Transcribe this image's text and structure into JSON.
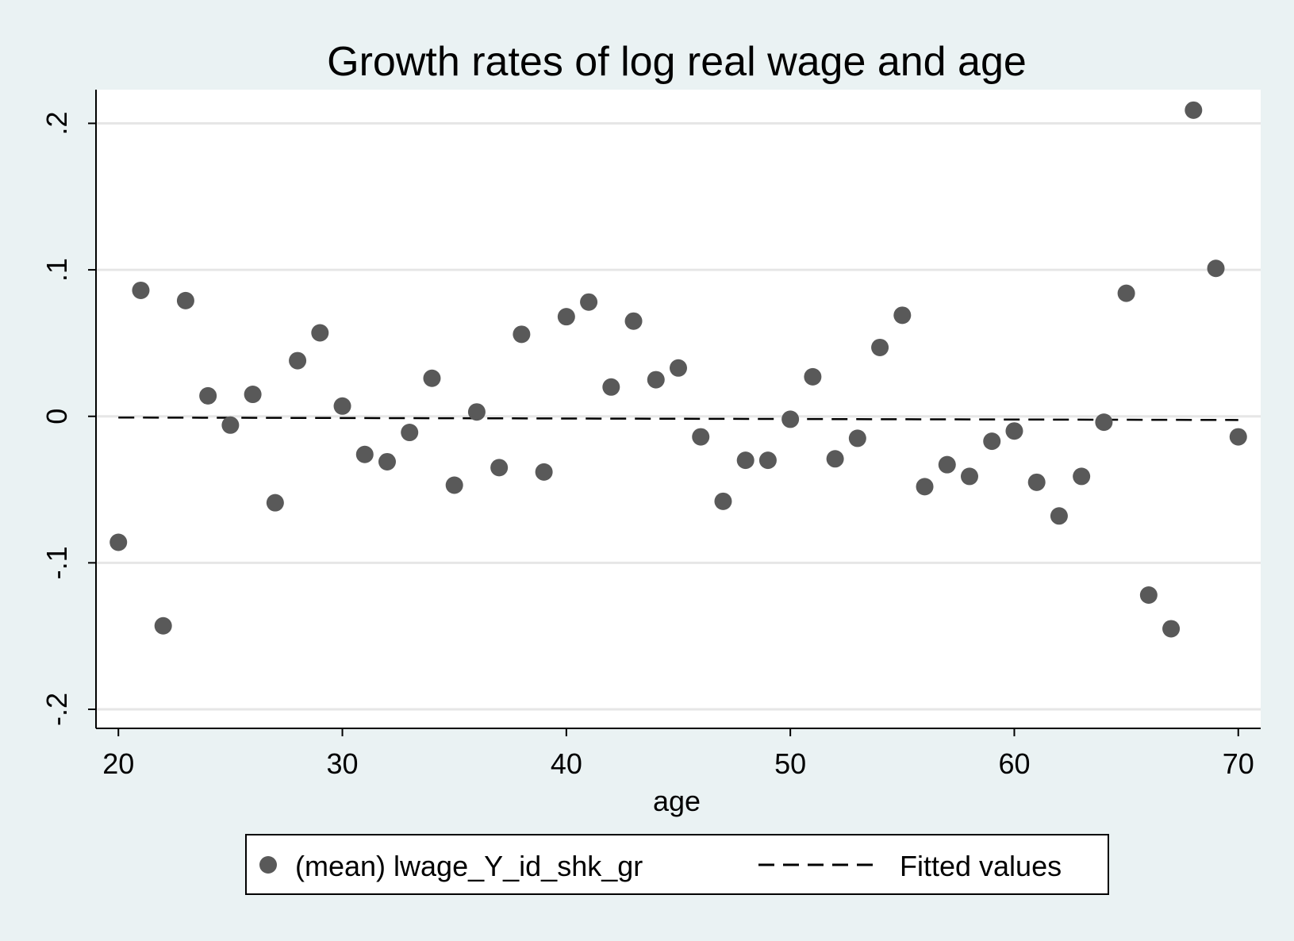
{
  "chart_data": {
    "type": "scatter",
    "title": "Growth rates of log real wage and age",
    "xlabel": "age",
    "ylabel": "",
    "xlim": [
      19,
      71
    ],
    "ylim": [
      -0.213,
      0.223
    ],
    "xticks": [
      20,
      30,
      40,
      50,
      60,
      70
    ],
    "xtick_labels": [
      "20",
      "30",
      "40",
      "50",
      "60",
      "70"
    ],
    "yticks": [
      -0.2,
      -0.1,
      0,
      0.1,
      0.2
    ],
    "ytick_labels": [
      "-.2",
      "-.1",
      "0",
      ".1",
      ".2"
    ],
    "grid": true,
    "legend_position": "bottom",
    "colors": {
      "background": "#eaf2f3",
      "plot_area": "#ffffff",
      "grid": "#e6e6e6",
      "marker": "#595959",
      "fit_line": "#000000"
    },
    "series": [
      {
        "name": "(mean) lwage_Y_id_shk_gr",
        "kind": "scatter",
        "x": [
          20,
          21,
          22,
          23,
          24,
          25,
          26,
          27,
          28,
          29,
          30,
          31,
          32,
          33,
          34,
          35,
          36,
          37,
          38,
          39,
          40,
          41,
          42,
          43,
          44,
          45,
          46,
          47,
          48,
          49,
          50,
          51,
          52,
          53,
          54,
          55,
          56,
          57,
          58,
          59,
          60,
          61,
          62,
          63,
          64,
          65,
          66,
          67,
          68,
          69,
          70
        ],
        "y": [
          -0.086,
          0.086,
          -0.143,
          0.079,
          0.014,
          -0.006,
          0.015,
          -0.059,
          0.038,
          0.057,
          0.007,
          -0.026,
          -0.031,
          -0.011,
          0.026,
          -0.047,
          0.003,
          -0.035,
          0.056,
          -0.038,
          0.068,
          0.078,
          0.02,
          0.065,
          0.025,
          0.033,
          -0.014,
          -0.058,
          -0.03,
          -0.03,
          -0.002,
          0.027,
          -0.029,
          -0.015,
          0.047,
          0.069,
          -0.048,
          -0.033,
          -0.041,
          -0.017,
          -0.01,
          -0.045,
          -0.068,
          -0.041,
          -0.004,
          0.084,
          -0.122,
          -0.145,
          0.209,
          0.101,
          -0.014
        ]
      },
      {
        "name": "Fitted values",
        "kind": "line",
        "style": "dashed",
        "x": [
          20,
          70
        ],
        "y": [
          -0.0008,
          -0.0025
        ]
      }
    ]
  }
}
